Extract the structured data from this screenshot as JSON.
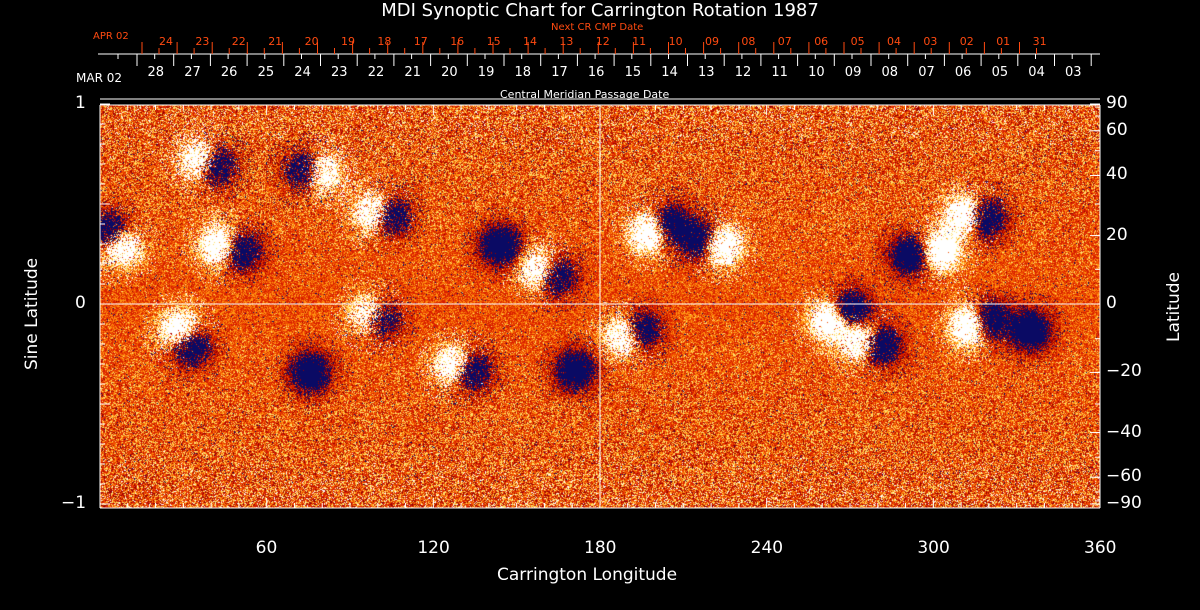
{
  "chart_data": {
    "type": "heatmap",
    "title": "MDI Synoptic Chart for Carrington Rotation 1987",
    "xlabel": "Carrington Longitude",
    "ylabel_left": "Sine Latitude",
    "ylabel_right": "Latitude",
    "xlim": [
      0,
      360
    ],
    "ylim": [
      -1,
      1
    ],
    "x_ticks": [
      "60",
      "120",
      "180",
      "240",
      "300",
      "360"
    ],
    "y_ticks_left": [
      "1",
      "0",
      "−1"
    ],
    "y_ticks_right": [
      "90",
      "60",
      "40",
      "20",
      "0",
      "−20",
      "−40",
      "−60",
      "−90"
    ],
    "top_axis": {
      "label": "Central Meridian Passage Date",
      "start_label": "MAR 02",
      "dates": [
        "28",
        "27",
        "26",
        "25",
        "24",
        "23",
        "22",
        "21",
        "20",
        "19",
        "18",
        "17",
        "16",
        "15",
        "14",
        "13",
        "12",
        "11",
        "10",
        "09",
        "08",
        "07",
        "06",
        "05",
        "04",
        "03"
      ]
    },
    "next_axis": {
      "label": "Next CR CMP Date",
      "start_label": "APR 02",
      "dates": [
        "24",
        "23",
        "22",
        "21",
        "20",
        "19",
        "18",
        "17",
        "16",
        "15",
        "14",
        "13",
        "12",
        "11",
        "10",
        "09",
        "08",
        "07",
        "06",
        "05",
        "04",
        "03",
        "02",
        "01",
        "31"
      ],
      "color": "#ff4a10"
    },
    "colormap": [
      "#0a0a60",
      "#b00000",
      "#e83a00",
      "#ff8a10",
      "#ffe070",
      "#ffffff"
    ],
    "grid_lines": {
      "longitude": 180,
      "sine_latitude": 0
    }
  }
}
